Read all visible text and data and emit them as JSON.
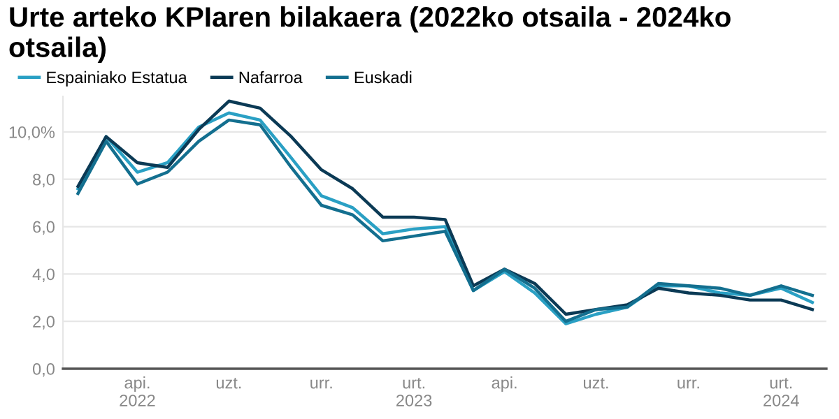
{
  "chart_data": {
    "type": "line",
    "title": "Urte arteko KPIaren bilakaera (2022ko otsaila - 2024ko otsaila)",
    "x": [
      "2022-02",
      "2022-03",
      "2022-04",
      "2022-05",
      "2022-06",
      "2022-07",
      "2022-08",
      "2022-09",
      "2022-10",
      "2022-11",
      "2022-12",
      "2023-01",
      "2023-02",
      "2023-03",
      "2023-04",
      "2023-05",
      "2023-06",
      "2023-07",
      "2023-08",
      "2023-09",
      "2023-10",
      "2023-11",
      "2023-12",
      "2024-01",
      "2024-02"
    ],
    "series": [
      {
        "name": "Espainiako Estatua",
        "color": "#2aa0c4",
        "values": [
          7.6,
          9.8,
          8.3,
          8.7,
          10.2,
          10.8,
          10.5,
          8.9,
          7.3,
          6.8,
          5.7,
          5.9,
          6.0,
          3.3,
          4.1,
          3.2,
          1.9,
          2.3,
          2.6,
          3.5,
          3.5,
          3.2,
          3.1,
          3.4,
          2.8
        ]
      },
      {
        "name": "Nafarroa",
        "color": "#0b3a55",
        "values": [
          7.7,
          9.8,
          8.7,
          8.5,
          10.1,
          11.3,
          11.0,
          9.8,
          8.4,
          7.6,
          6.4,
          6.4,
          6.3,
          3.5,
          4.2,
          3.6,
          2.3,
          2.5,
          2.7,
          3.4,
          3.2,
          3.1,
          2.9,
          2.9,
          2.5
        ]
      },
      {
        "name": "Euskadi",
        "color": "#136f8f",
        "values": [
          7.4,
          9.6,
          7.8,
          8.3,
          9.6,
          10.5,
          10.3,
          8.5,
          6.9,
          6.5,
          5.4,
          5.6,
          5.8,
          3.3,
          4.2,
          3.4,
          2.0,
          2.5,
          2.6,
          3.6,
          3.5,
          3.4,
          3.1,
          3.5,
          3.1
        ]
      }
    ],
    "xlim": [
      "2022-01-17",
      "2024-02-15"
    ],
    "xticks": [
      {
        "value": "2022-04",
        "label": "api.\n2022"
      },
      {
        "value": "2022-07",
        "label": "uzt."
      },
      {
        "value": "2022-10",
        "label": "urr."
      },
      {
        "value": "2023-01",
        "label": "urt.\n2023"
      },
      {
        "value": "2023-04",
        "label": "api."
      },
      {
        "value": "2023-07",
        "label": "uzt."
      },
      {
        "value": "2023-10",
        "label": "urr."
      },
      {
        "value": "2024-01",
        "label": "urt.\n2024"
      }
    ],
    "ylim": [
      0,
      11.5
    ],
    "yticks": [
      {
        "value": 0,
        "label": "0,0"
      },
      {
        "value": 2,
        "label": "2,0"
      },
      {
        "value": 4,
        "label": "4,0"
      },
      {
        "value": 6,
        "label": "6,0"
      },
      {
        "value": 8,
        "label": "8,0"
      },
      {
        "value": 10,
        "label": "10,0%"
      }
    ],
    "grid": "y",
    "legend": "top left",
    "marker": "none",
    "line_style": "solid"
  }
}
